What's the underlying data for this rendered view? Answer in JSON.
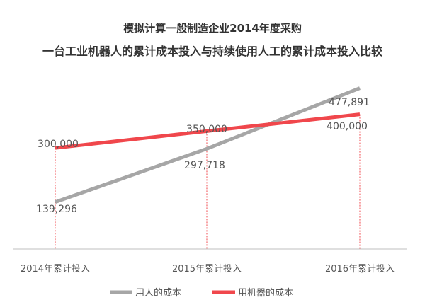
{
  "chart_data": {
    "type": "line",
    "title": "模拟计算一般制造企业2014年度采购",
    "subtitle": "一台工业机器人的累计成本投入与持续使用人工的累计成本投入比较",
    "categories": [
      "2014年累计投入",
      "2015年累计投入",
      "2016年累计投入"
    ],
    "series": [
      {
        "name": "用人的成本",
        "values": [
          139296,
          297718,
          477891
        ],
        "labels": [
          "139,296",
          "297,718",
          "477,891"
        ],
        "color": "#a6a6a6"
      },
      {
        "name": "用机器的成本",
        "values": [
          300000,
          350000,
          400000
        ],
        "labels": [
          "300,000",
          "350,000",
          "400,000"
        ],
        "color": "#f0474c"
      }
    ],
    "ylim": [
      0,
      540000
    ],
    "grid": false,
    "legend": "bottom",
    "axis_color": "#bfbfbf",
    "guide_color": "#f0474c"
  }
}
